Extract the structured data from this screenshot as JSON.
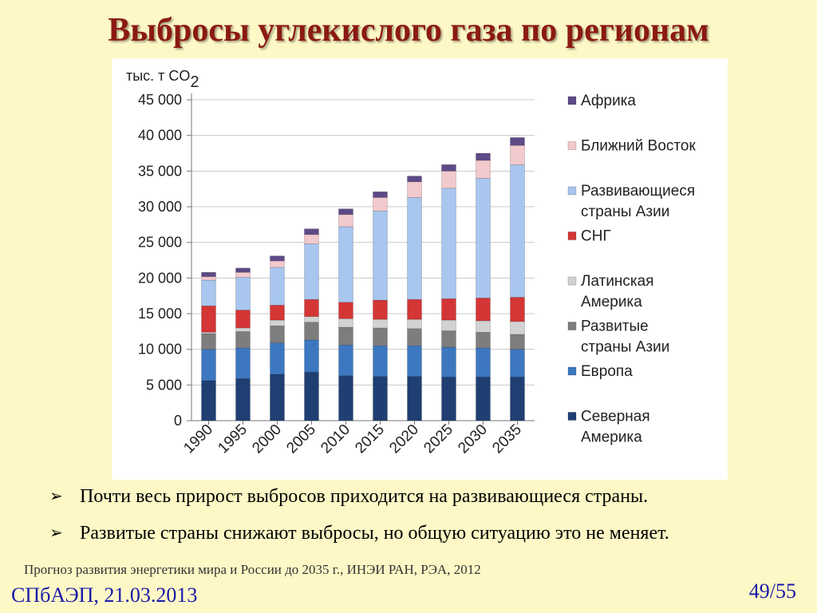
{
  "slide": {
    "title": "Выбросы углекислого газа по регионам",
    "bullets": [
      "Почти весь прирост выбросов приходится на развивающиеся страны.",
      "Развитые страны снижают выбросы, но общую ситуацию это не меняет."
    ],
    "bullet_marker": "➢",
    "source": "Прогноз развития энергетики мира и России до 2035 г., ИНЭИ РАН, РЭА, 2012",
    "footer_left": "СПбАЭП, 21.03.2013",
    "page_number": "49/55",
    "colors": {
      "background": "#fdf8c6",
      "title": "#8b1a12",
      "footer": "#1a1aa8"
    }
  },
  "chart_data": {
    "type": "bar",
    "stacked": true,
    "unit_label": "тыс. т CO",
    "unit_subscript": "2",
    "categories": [
      "1990",
      "1995",
      "2000",
      "2005",
      "2010",
      "2015",
      "2020",
      "2025",
      "2030",
      "2035"
    ],
    "ylim": [
      0,
      45000
    ],
    "yticks": [
      0,
      5000,
      10000,
      15000,
      20000,
      25000,
      30000,
      35000,
      40000,
      45000
    ],
    "ytick_labels": [
      "0",
      "5 000",
      "10 000",
      "15 000",
      "20 000",
      "25 000",
      "30 000",
      "35 000",
      "40 000",
      "45 000"
    ],
    "grid": true,
    "legend_position": "right",
    "series": [
      {
        "name": "Северная Америка",
        "color": "#1f3f73",
        "values": [
          5600,
          5900,
          6500,
          6800,
          6300,
          6200,
          6200,
          6100,
          6100,
          6100
        ]
      },
      {
        "name": "Европа",
        "color": "#3c77c0",
        "values": [
          4400,
          4300,
          4400,
          4500,
          4300,
          4300,
          4300,
          4200,
          4100,
          3900
        ]
      },
      {
        "name": "Развитые страны Азии",
        "color": "#7d7d7d",
        "values": [
          2200,
          2300,
          2400,
          2500,
          2500,
          2500,
          2400,
          2300,
          2200,
          2100
        ]
      },
      {
        "name": "Латинская Америка",
        "color": "#d2d2d2",
        "values": [
          200,
          500,
          800,
          800,
          1200,
          1200,
          1300,
          1500,
          1600,
          1800
        ]
      },
      {
        "name": "СНГ",
        "color": "#d43535",
        "values": [
          3700,
          2500,
          2100,
          2400,
          2300,
          2700,
          2800,
          3000,
          3200,
          3400
        ]
      },
      {
        "name": "Развивающиеся страны Азии",
        "color": "#a8c6ee",
        "values": [
          3600,
          4600,
          5300,
          7800,
          10600,
          12500,
          14300,
          15500,
          16800,
          18600
        ]
      },
      {
        "name": "Ближний Восток",
        "color": "#f2c9cc",
        "values": [
          500,
          700,
          900,
          1300,
          1700,
          1900,
          2200,
          2400,
          2500,
          2700
        ]
      },
      {
        "name": "Африка",
        "color": "#5d4a86",
        "values": [
          600,
          600,
          700,
          800,
          800,
          800,
          800,
          900,
          1000,
          1100
        ]
      }
    ],
    "legend_labels": [
      [
        "Африка"
      ],
      [
        "Ближний Восток"
      ],
      [
        "Развивающиеся",
        "страны Азии"
      ],
      [
        "СНГ"
      ],
      [
        "Латинская",
        "Америка"
      ],
      [
        "Развитые",
        "страны Азии"
      ],
      [
        "Европа"
      ],
      [
        "Северная",
        "Америка"
      ]
    ]
  }
}
